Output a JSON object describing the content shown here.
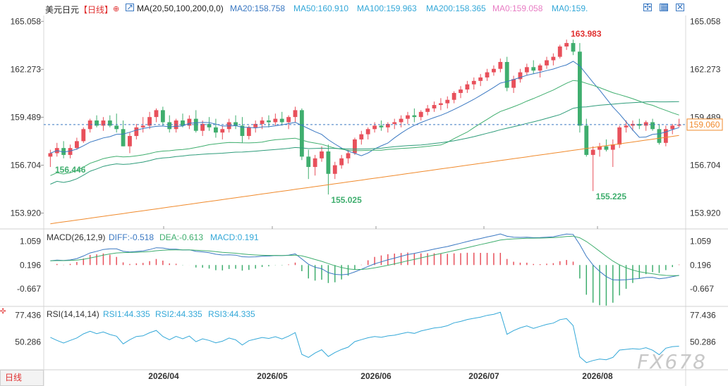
{
  "header": {
    "symbol": "美元日元",
    "period": "【日线】",
    "ma_setting": "MA(20,50,100,200,0,0)",
    "ma20": "MA20:158.758",
    "ma50": "MA50:160.910",
    "ma100": "MA100:159.963",
    "ma200": "MA200:158.365",
    "ma0a": "MA0:159.058",
    "ma0b": "MA0:159."
  },
  "colors": {
    "up": "#e8505b",
    "down": "#3fae6e",
    "ma20": "#3a78c2",
    "ma50": "#3fae6e",
    "ma100": "#2e9c7a",
    "ma200": "#f08a2c",
    "macd_up": "#e8505b",
    "macd_down": "#3fae6e",
    "rsi": "#34a8d8",
    "price_line": "#3a78c2",
    "current_price": "#f08a2c"
  },
  "price_axis": {
    "ticks": [
      "165.058",
      "162.273",
      "159.489",
      "156.704",
      "153.920"
    ],
    "current_price": "159.060",
    "high_label": "163.983",
    "low_label_1": "155.025",
    "low_label_2": "155.225",
    "ma_label": "156.446"
  },
  "macd": {
    "title": "MACD(26,12,9)",
    "diff": "DIFF:-0.518",
    "dea": "DEA:-0.613",
    "macd": "MACD:0.191",
    "ticks": [
      "1.059",
      "0.196",
      "-0.667"
    ]
  },
  "rsi": {
    "title": "RSI(14,14,14)",
    "rsi1": "RSI1:44.335",
    "rsi2": "RSI2:44.335",
    "rsi3": "RSI3:44.335",
    "ticks": [
      "77.436",
      "50.286"
    ]
  },
  "dates": [
    "2026/04",
    "2026/05",
    "2026/06",
    "2026/07",
    "2026/08"
  ],
  "bottom_tab": "日线",
  "watermark": "FX678",
  "chart_data": {
    "type": "candlestick",
    "title": "美元日元 日线",
    "ylim": [
      153.0,
      165.4
    ],
    "candles": [
      [
        157.2,
        157.6,
        156.6,
        157.4
      ],
      [
        157.4,
        158.0,
        157.2,
        157.7
      ],
      [
        157.7,
        158.1,
        157.1,
        157.3
      ],
      [
        157.3,
        157.9,
        157.1,
        157.7
      ],
      [
        157.7,
        158.3,
        157.6,
        158.1
      ],
      [
        158.1,
        158.9,
        158.0,
        158.8
      ],
      [
        158.8,
        159.4,
        158.6,
        159.3
      ],
      [
        159.3,
        159.6,
        158.9,
        159.0
      ],
      [
        159.0,
        159.5,
        158.7,
        159.3
      ],
      [
        159.3,
        159.6,
        158.9,
        159.0
      ],
      [
        159.0,
        159.7,
        158.6,
        158.8
      ],
      [
        158.8,
        159.3,
        157.8,
        157.8
      ],
      [
        157.8,
        158.6,
        157.4,
        158.4
      ],
      [
        158.4,
        159.1,
        158.2,
        158.9
      ],
      [
        158.9,
        159.5,
        158.6,
        159.0
      ],
      [
        159.0,
        159.8,
        158.8,
        159.5
      ],
      [
        159.5,
        160.0,
        159.2,
        159.9
      ],
      [
        159.9,
        160.1,
        159.0,
        159.2
      ],
      [
        159.2,
        159.6,
        158.6,
        158.8
      ],
      [
        158.8,
        159.4,
        158.6,
        159.3
      ],
      [
        159.3,
        159.7,
        158.9,
        159.0
      ],
      [
        159.0,
        159.6,
        158.8,
        159.4
      ],
      [
        159.4,
        159.9,
        158.6,
        158.7
      ],
      [
        158.7,
        159.3,
        158.4,
        159.1
      ],
      [
        159.1,
        159.5,
        158.7,
        158.9
      ],
      [
        158.9,
        159.4,
        158.3,
        158.6
      ],
      [
        158.6,
        159.0,
        158.2,
        158.8
      ],
      [
        158.8,
        159.4,
        158.6,
        159.2
      ],
      [
        159.2,
        159.6,
        158.8,
        159.0
      ],
      [
        159.0,
        159.5,
        158.0,
        158.4
      ],
      [
        158.4,
        159.0,
        158.2,
        158.9
      ],
      [
        158.9,
        159.3,
        158.6,
        159.1
      ],
      [
        159.1,
        159.5,
        158.8,
        159.3
      ],
      [
        159.3,
        159.6,
        158.9,
        159.2
      ],
      [
        159.2,
        159.7,
        159.0,
        159.4
      ],
      [
        159.4,
        159.8,
        159.0,
        159.2
      ],
      [
        159.2,
        159.6,
        158.8,
        159.5
      ],
      [
        159.5,
        160.1,
        159.2,
        159.9
      ],
      [
        159.9,
        160.0,
        157.0,
        157.2
      ],
      [
        157.2,
        157.6,
        155.9,
        156.6
      ],
      [
        156.6,
        157.3,
        156.1,
        157.1
      ],
      [
        157.1,
        157.8,
        156.9,
        157.5
      ],
      [
        157.5,
        157.9,
        155.0,
        156.2
      ],
      [
        156.2,
        156.9,
        155.9,
        156.7
      ],
      [
        156.7,
        157.3,
        156.5,
        157.1
      ],
      [
        157.1,
        157.6,
        156.8,
        157.4
      ],
      [
        157.4,
        158.3,
        157.3,
        158.2
      ],
      [
        158.2,
        158.7,
        157.9,
        158.5
      ],
      [
        158.5,
        158.9,
        158.2,
        158.8
      ],
      [
        158.8,
        159.2,
        158.6,
        159.0
      ],
      [
        159.0,
        159.3,
        158.7,
        158.9
      ],
      [
        158.9,
        159.2,
        158.6,
        159.1
      ],
      [
        159.1,
        159.4,
        158.8,
        159.2
      ],
      [
        159.2,
        159.6,
        158.9,
        159.4
      ],
      [
        159.4,
        159.8,
        159.1,
        159.6
      ],
      [
        159.6,
        160.0,
        159.2,
        159.5
      ],
      [
        159.5,
        159.9,
        159.3,
        159.8
      ],
      [
        159.8,
        160.2,
        159.6,
        160.0
      ],
      [
        160.0,
        160.4,
        159.8,
        160.2
      ],
      [
        160.2,
        160.6,
        159.9,
        160.3
      ],
      [
        160.3,
        160.7,
        160.0,
        160.5
      ],
      [
        160.5,
        161.0,
        160.3,
        160.9
      ],
      [
        160.9,
        161.3,
        160.6,
        161.1
      ],
      [
        161.1,
        161.6,
        160.9,
        161.4
      ],
      [
        161.4,
        161.8,
        161.1,
        161.6
      ],
      [
        161.6,
        162.0,
        161.3,
        161.8
      ],
      [
        161.8,
        162.3,
        161.6,
        162.1
      ],
      [
        162.1,
        162.5,
        161.9,
        162.3
      ],
      [
        162.3,
        162.9,
        162.1,
        162.7
      ],
      [
        162.7,
        163.0,
        161.0,
        161.2
      ],
      [
        161.2,
        161.9,
        160.9,
        161.7
      ],
      [
        161.7,
        162.3,
        161.5,
        162.1
      ],
      [
        162.1,
        162.6,
        161.9,
        162.4
      ],
      [
        162.4,
        162.8,
        162.0,
        162.2
      ],
      [
        162.2,
        162.6,
        161.8,
        162.5
      ],
      [
        162.5,
        163.0,
        162.3,
        162.8
      ],
      [
        162.8,
        163.2,
        162.5,
        163.0
      ],
      [
        163.0,
        163.7,
        162.9,
        163.6
      ],
      [
        163.6,
        164.0,
        163.4,
        163.8
      ],
      [
        163.8,
        164.0,
        163.1,
        163.3
      ],
      [
        163.3,
        163.8,
        158.6,
        159.0
      ],
      [
        159.0,
        159.4,
        157.2,
        157.3
      ],
      [
        157.3,
        157.8,
        155.2,
        157.6
      ],
      [
        157.6,
        158.0,
        157.2,
        157.8
      ],
      [
        157.8,
        158.2,
        157.5,
        157.6
      ],
      [
        157.6,
        158.2,
        156.6,
        157.9
      ],
      [
        157.9,
        159.0,
        157.7,
        158.9
      ],
      [
        158.9,
        159.3,
        158.6,
        159.0
      ],
      [
        159.0,
        159.3,
        158.7,
        159.1
      ],
      [
        159.1,
        159.4,
        158.8,
        159.0
      ],
      [
        159.0,
        159.3,
        158.7,
        159.2
      ],
      [
        159.2,
        159.4,
        158.7,
        158.8
      ],
      [
        158.8,
        159.1,
        157.9,
        158.0
      ],
      [
        158.0,
        159.0,
        157.8,
        158.8
      ],
      [
        158.8,
        159.1,
        158.5,
        159.0
      ],
      [
        159.0,
        159.4,
        158.9,
        159.06
      ]
    ]
  }
}
